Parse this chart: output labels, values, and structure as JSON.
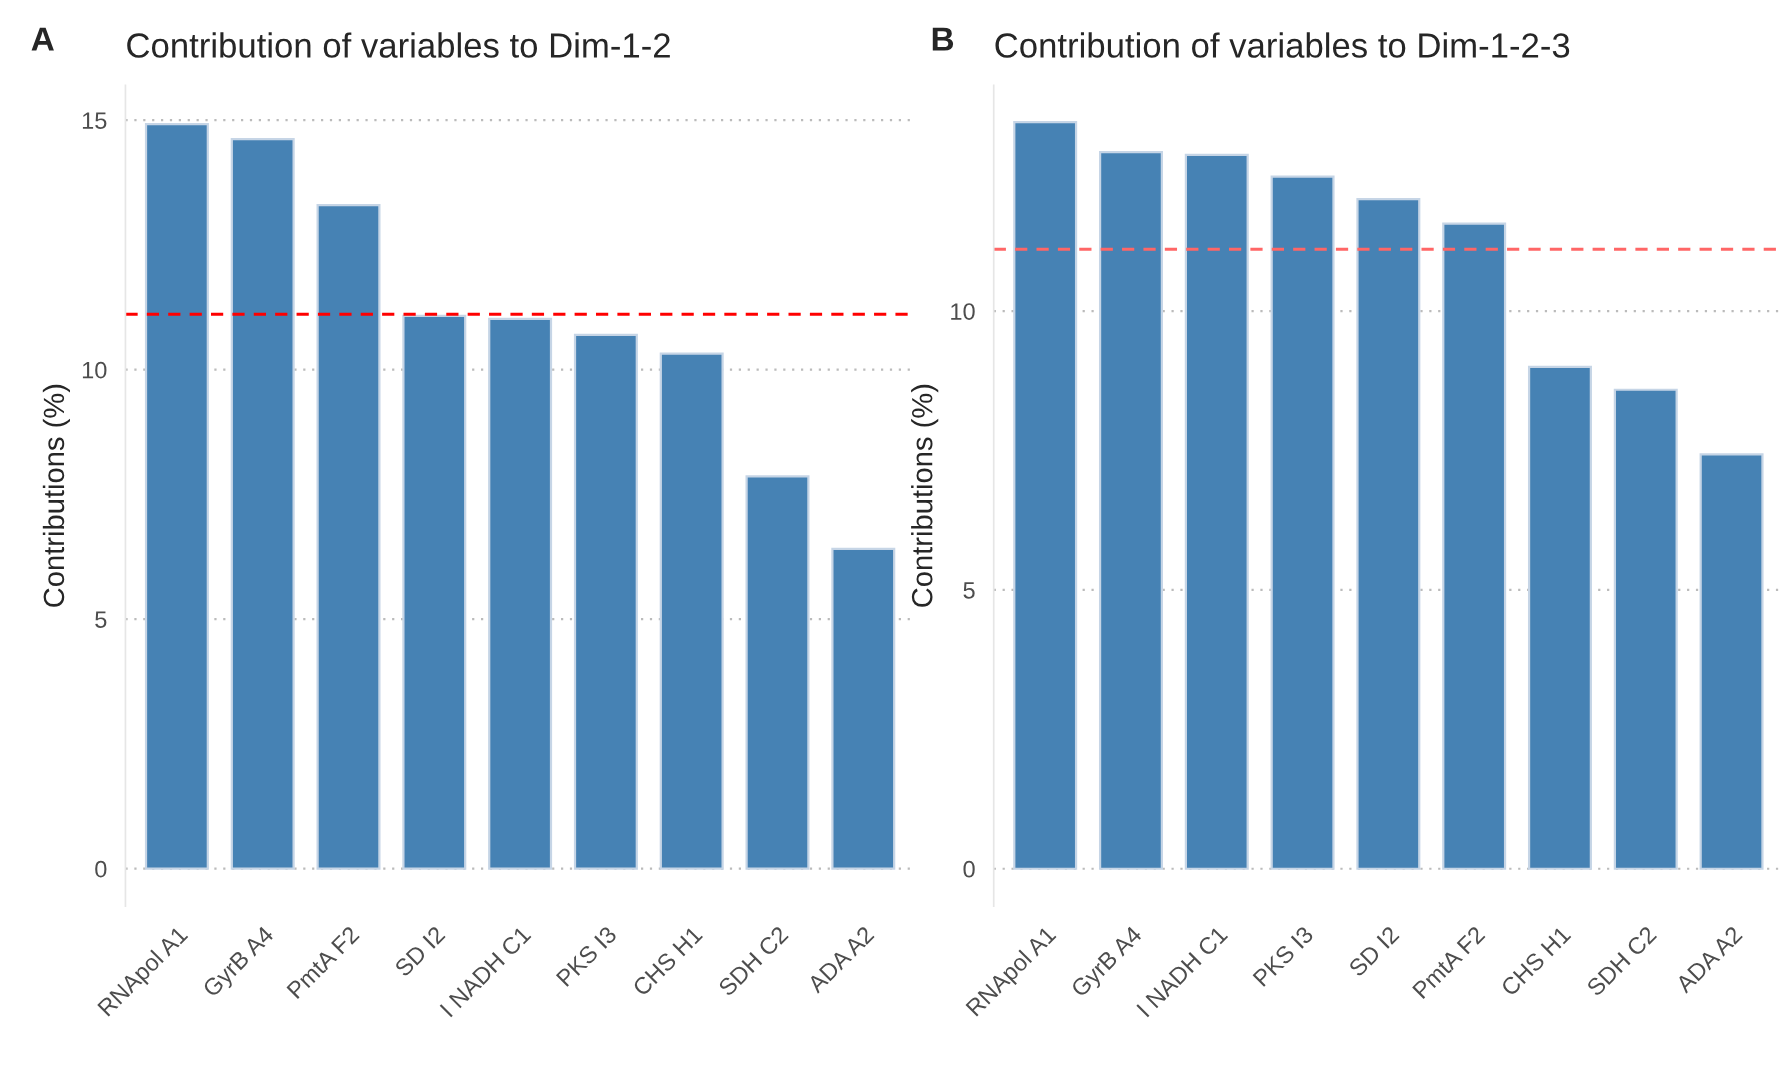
{
  "chart_data": [
    {
      "type": "bar",
      "title": "Contribution of variables to Dim-1-2",
      "annotations": [
        "A"
      ],
      "ylabel": "Contributions (%)",
      "categories": [
        "RNApol A1",
        "GyrB A4",
        "PmtA F2",
        "SD I2",
        "I NADH C1",
        "PKS I3",
        "CHS H1",
        "SDH C2",
        "ADA A2"
      ],
      "values": [
        14.92,
        14.62,
        13.3,
        11.08,
        11.02,
        10.7,
        10.32,
        7.86,
        6.41
      ],
      "color": "#4682b4",
      "ylim": [
        -0.75,
        15.7
      ],
      "yticks": [
        0,
        5,
        10,
        15
      ],
      "grid": "y",
      "ref_lines": [
        {
          "axis": "y",
          "value": 11.11,
          "color": "#ff0000",
          "line_style": "dashed"
        }
      ]
    },
    {
      "type": "bar",
      "title": "Contribution of variables to Dim-1-2-3",
      "annotations": [
        "B"
      ],
      "ylabel": "Contributions (%)",
      "categories": [
        "RNApol A1",
        "GyrB A4",
        "I NADH C1",
        "PKS I3",
        "SD I2",
        "PmtA F2",
        "CHS H1",
        "SDH C2",
        "ADA A2"
      ],
      "values": [
        13.39,
        12.85,
        12.8,
        12.41,
        12.01,
        11.57,
        9.0,
        8.59,
        7.43
      ],
      "color": "#4682b4",
      "ylim": [
        -0.67,
        14.05
      ],
      "yticks": [
        0,
        5,
        10
      ],
      "grid": "y",
      "ref_lines": [
        {
          "axis": "y",
          "value": 11.11,
          "color": "#ff6666",
          "line_style": "dashed"
        }
      ]
    }
  ]
}
